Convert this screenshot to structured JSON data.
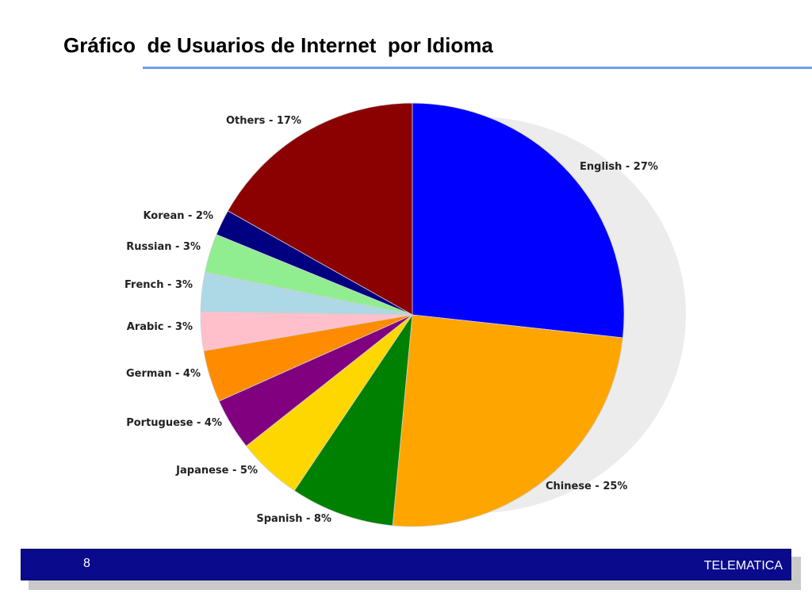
{
  "slide": {
    "title": "Gráfico  de Usuarios de Internet  por Idioma",
    "page_number": "8",
    "footer_text": "TELEMATICA"
  },
  "colors": {
    "accent_rule": "#6f9ef2",
    "footer_bar": "#0a0a8c"
  },
  "chart_data": {
    "type": "pie",
    "title": "",
    "slices": [
      {
        "label": "English - 27%",
        "name": "English",
        "value": 27,
        "color": "#0000ff"
      },
      {
        "label": "Chinese - 25%",
        "name": "Chinese",
        "value": 25,
        "color": "#ffa500"
      },
      {
        "label": "Spanish - 8%",
        "name": "Spanish",
        "value": 8,
        "color": "#008000"
      },
      {
        "label": "Japanese - 5%",
        "name": "Japanese",
        "value": 5,
        "color": "#ffd700"
      },
      {
        "label": "Portuguese - 4%",
        "name": "Portuguese",
        "value": 4,
        "color": "#800080"
      },
      {
        "label": "German - 4%",
        "name": "German",
        "value": 4,
        "color": "#ff8c00"
      },
      {
        "label": "Arabic - 3%",
        "name": "Arabic",
        "value": 3,
        "color": "#ffc0cb"
      },
      {
        "label": "French - 3%",
        "name": "French",
        "value": 3,
        "color": "#add8e6"
      },
      {
        "label": "Russian - 3%",
        "name": "Russian",
        "value": 3,
        "color": "#90ee90"
      },
      {
        "label": "Korean - 2%",
        "name": "Korean",
        "value": 2,
        "color": "#000080"
      },
      {
        "label": "Others - 17%",
        "name": "Others",
        "value": 17,
        "color": "#8b0000"
      }
    ],
    "start": "12 o'clock",
    "direction": "clockwise",
    "legend": "none"
  }
}
